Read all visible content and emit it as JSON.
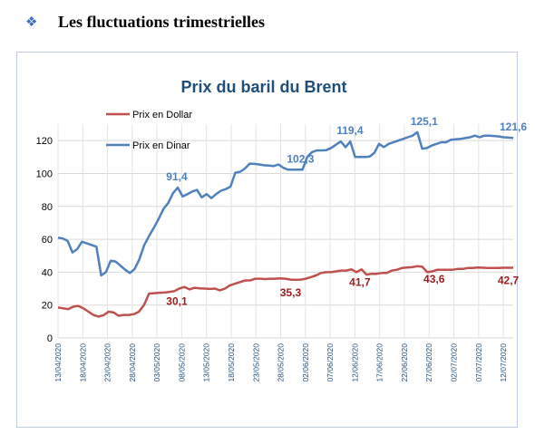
{
  "heading": {
    "bullet_icon": "diamond-bullet-icon",
    "text": "Les fluctuations trimestrielles"
  },
  "chart_data": {
    "type": "line",
    "title": "Prix du baril du Brent",
    "xlabel": "",
    "ylabel": "",
    "ylim": [
      0,
      130
    ],
    "yticks": [
      0,
      20,
      40,
      60,
      80,
      100,
      120
    ],
    "grid": true,
    "legend_position": "top-left",
    "tick_labels": [
      "13/04/2020",
      "18/04/2020",
      "23/04/2020",
      "28/04/2020",
      "03/05/2020",
      "08/05/2020",
      "13/05/2020",
      "18/05/2020",
      "23/05/2020",
      "28/05/2020",
      "02/06/2020",
      "07/06/2020",
      "12/06/2020",
      "17/06/2020",
      "22/06/2020",
      "27/06/2020",
      "02/07/2020",
      "07/07/2020",
      "12/07/2020"
    ],
    "x_start": "2020-04-13",
    "series": [
      {
        "name": "Prix en Dollar",
        "color": "#c0504d",
        "values": [
          18.5,
          18,
          17.5,
          19,
          19.5,
          18,
          16,
          14,
          13,
          13.8,
          16,
          15.5,
          13.5,
          14,
          14,
          14.5,
          16,
          20,
          27,
          27.2,
          27.5,
          27.6,
          28,
          28.5,
          30.1,
          31,
          29.5,
          30.5,
          30.2,
          30,
          29.8,
          30,
          29,
          30,
          32,
          33,
          34,
          35,
          35,
          36,
          36,
          35.8,
          36,
          36,
          36.2,
          36,
          35.5,
          35.3,
          35.5,
          36,
          37,
          38,
          39.5,
          40,
          40,
          40.5,
          41,
          41,
          41.7,
          40,
          41.7,
          38.5,
          39,
          39,
          39.5,
          39.5,
          41,
          41.5,
          42.5,
          42.8,
          43,
          43.6,
          43.3,
          40,
          40.5,
          41.5,
          41.5,
          41.5,
          41.5,
          42,
          42,
          42.5,
          42.5,
          42.8,
          42.7,
          42.5,
          42.5,
          42.5,
          42.7,
          42.7,
          42.7
        ],
        "labels": [
          {
            "x": "2020-05-07",
            "value": 30.1,
            "text": "30,1"
          },
          {
            "x": "2020-05-30",
            "value": 35.3,
            "text": "35,3"
          },
          {
            "x": "2020-06-13",
            "value": 41.7,
            "text": "41,7"
          },
          {
            "x": "2020-06-28",
            "value": 43.6,
            "text": "43,6"
          },
          {
            "x": "2020-07-13",
            "value": 42.7,
            "text": "42,7"
          }
        ]
      },
      {
        "name": "Prix en Dinar",
        "color": "#4f81bd",
        "values": [
          61,
          60.5,
          59,
          52,
          54,
          58.5,
          57.5,
          56.5,
          55.5,
          38,
          40,
          47,
          46.5,
          44,
          41.5,
          39.5,
          42,
          48,
          56.5,
          62,
          67,
          72.5,
          78.5,
          82,
          88,
          91.4,
          86,
          87.5,
          89,
          90,
          85.5,
          87.5,
          85,
          87.5,
          89.5,
          90.5,
          92,
          100.5,
          101,
          103,
          106,
          105.8,
          105.5,
          105,
          104.8,
          104.5,
          105.5,
          103.5,
          102.3,
          102.3,
          102.3,
          102.3,
          110,
          113,
          114,
          114,
          114.2,
          115.5,
          117.5,
          119.4,
          116,
          119.4,
          110,
          110,
          110,
          110.2,
          112.5,
          118,
          116,
          118,
          119,
          120,
          121,
          122,
          123,
          125.1,
          115,
          115.5,
          117,
          118,
          119,
          119,
          120.5,
          120.8,
          121,
          121.5,
          122,
          123,
          122,
          123,
          123,
          122.8,
          122.5,
          122,
          121.8,
          121.6
        ],
        "labels": [
          {
            "x": "2020-05-07",
            "value": 91.4,
            "text": "91,4"
          },
          {
            "x": "2020-06-01",
            "value": 102.3,
            "text": "102,3"
          },
          {
            "x": "2020-06-11",
            "value": 119.4,
            "text": "119,4"
          },
          {
            "x": "2020-06-26",
            "value": 125.1,
            "text": "125,1"
          },
          {
            "x": "2020-07-14",
            "value": 121.6,
            "text": "121,6"
          }
        ]
      }
    ]
  }
}
